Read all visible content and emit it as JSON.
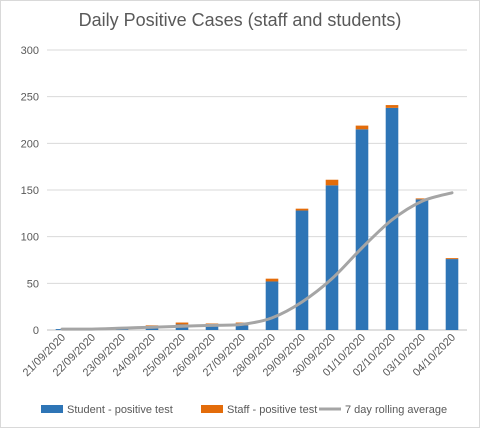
{
  "chart_data": {
    "type": "bar",
    "title": "Daily Positive Cases (staff and students)",
    "categories": [
      "21/09/2020",
      "22/09/2020",
      "23/09/2020",
      "24/09/2020",
      "25/09/2020",
      "26/09/2020",
      "27/09/2020",
      "28/09/2020",
      "29/09/2020",
      "30/09/2020",
      "01/10/2020",
      "02/10/2020",
      "03/10/2020",
      "04/10/2020"
    ],
    "ylim": [
      0,
      300
    ],
    "yticks": [
      0,
      50,
      100,
      150,
      200,
      250,
      300
    ],
    "grid": true,
    "stacked": true,
    "legend_position": "bottom",
    "series": [
      {
        "name": "Student - positive test",
        "kind": "bar",
        "color": "#2e75b6",
        "values": [
          1,
          1,
          2,
          4,
          6,
          5,
          5,
          52,
          128,
          155,
          215,
          238,
          140,
          76
        ]
      },
      {
        "name": "Staff - positive test",
        "kind": "bar",
        "color": "#e36c0a",
        "values": [
          0,
          0,
          0,
          1,
          2,
          2,
          3,
          3,
          2,
          6,
          4,
          3,
          1,
          1
        ]
      },
      {
        "name": "7 day rolling average",
        "kind": "line",
        "color": "#a5a5a5",
        "values": [
          1,
          1,
          2,
          3,
          4,
          5,
          6,
          13,
          30,
          55,
          88,
          118,
          138,
          147
        ]
      }
    ]
  }
}
